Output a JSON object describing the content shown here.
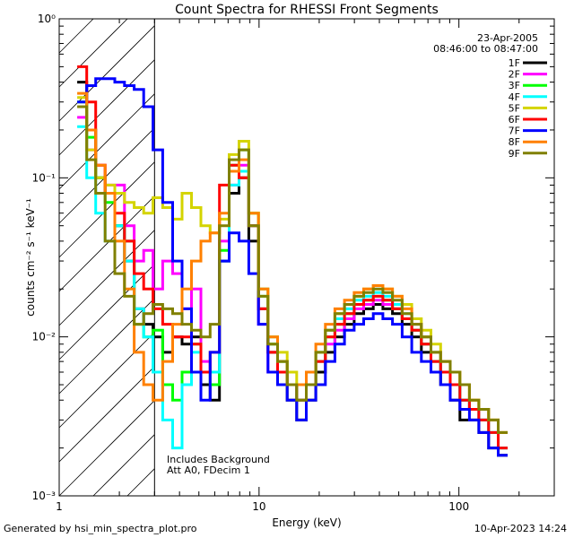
{
  "chart_data": {
    "type": "line",
    "title": "Count Spectra for RHESSI Front Segments",
    "xlabel": "Energy (keV)",
    "ylabel": "counts cm⁻² s⁻¹ keV⁻¹",
    "xscale": "log",
    "yscale": "log",
    "xlim": [
      1,
      300
    ],
    "ylim": [
      0.001,
      1
    ],
    "x_ticks": [
      {
        "value": 1,
        "label": "1"
      },
      {
        "value": 10,
        "label": "10"
      },
      {
        "value": 100,
        "label": "100"
      }
    ],
    "y_ticks": [
      {
        "value": 0.001,
        "label": "10⁻³"
      },
      {
        "value": 0.01,
        "label": "10⁻²"
      },
      {
        "value": 0.1,
        "label": "10⁻¹"
      },
      {
        "value": 1,
        "label": "10⁰"
      }
    ],
    "legend_position": "top-right",
    "legend_header": [
      "23-Apr-2005",
      "08:46:00 to 08:47:00"
    ],
    "annotations": [
      "Includes Background",
      "Att A0, FDecim 1"
    ],
    "hatched_region": [
      1,
      3
    ],
    "series": [
      {
        "name": "1F",
        "color": "#000000",
        "values": [
          0.4,
          0.2,
          0.1,
          0.08,
          0.05,
          0.03,
          0.015,
          0.012,
          0.01,
          0.008,
          0.01,
          0.009,
          0.01,
          0.005,
          0.004,
          0.03,
          0.08,
          0.1,
          0.04,
          0.015,
          0.008,
          0.006,
          0.004,
          0.003,
          0.004,
          0.006,
          0.008,
          0.01,
          0.012,
          0.014,
          0.015,
          0.016,
          0.015,
          0.014,
          0.012,
          0.01,
          0.008,
          0.006,
          0.005,
          0.004,
          0.003,
          0.003,
          0.0025,
          0.002,
          0.0018
        ]
      },
      {
        "name": "2F",
        "color": "#ff00ff",
        "values": [
          0.24,
          0.15,
          0.12,
          0.09,
          0.09,
          0.05,
          0.03,
          0.035,
          0.02,
          0.03,
          0.025,
          0.015,
          0.02,
          0.007,
          0.006,
          0.04,
          0.09,
          0.12,
          0.05,
          0.012,
          0.006,
          0.005,
          0.005,
          0.004,
          0.005,
          0.007,
          0.009,
          0.011,
          0.013,
          0.015,
          0.016,
          0.017,
          0.016,
          0.015,
          0.013,
          0.011,
          0.009,
          0.007,
          0.006,
          0.005,
          0.004,
          0.0035,
          0.003,
          0.0025,
          0.002
        ]
      },
      {
        "name": "3F",
        "color": "#00ff00",
        "values": [
          0.3,
          0.18,
          0.1,
          0.07,
          0.05,
          0.04,
          0.012,
          0.01,
          0.011,
          0.005,
          0.004,
          0.006,
          0.009,
          0.006,
          0.005,
          0.035,
          0.12,
          0.15,
          0.06,
          0.018,
          0.009,
          0.007,
          0.005,
          0.004,
          0.005,
          0.007,
          0.01,
          0.012,
          0.014,
          0.016,
          0.017,
          0.018,
          0.017,
          0.015,
          0.013,
          0.011,
          0.009,
          0.007,
          0.006,
          0.005,
          0.004,
          0.0035,
          0.003,
          0.0025,
          0.002
        ]
      },
      {
        "name": "4F",
        "color": "#00ffff",
        "values": [
          0.21,
          0.1,
          0.06,
          0.04,
          0.05,
          0.03,
          0.015,
          0.01,
          0.006,
          0.003,
          0.002,
          0.005,
          0.008,
          0.006,
          0.006,
          0.03,
          0.09,
          0.11,
          0.05,
          0.02,
          0.01,
          0.007,
          0.005,
          0.004,
          0.005,
          0.008,
          0.011,
          0.013,
          0.015,
          0.017,
          0.018,
          0.019,
          0.018,
          0.016,
          0.014,
          0.012,
          0.01,
          0.008,
          0.006,
          0.005,
          0.004,
          0.0035,
          0.003,
          0.0025,
          0.002
        ]
      },
      {
        "name": "5F",
        "color": "#d4d400",
        "values": [
          0.32,
          0.15,
          0.1,
          0.09,
          0.08,
          0.07,
          0.065,
          0.06,
          0.075,
          0.065,
          0.055,
          0.08,
          0.065,
          0.05,
          0.045,
          0.055,
          0.14,
          0.17,
          0.06,
          0.02,
          0.01,
          0.008,
          0.006,
          0.005,
          0.006,
          0.008,
          0.011,
          0.014,
          0.016,
          0.018,
          0.02,
          0.021,
          0.02,
          0.018,
          0.016,
          0.013,
          0.011,
          0.009,
          0.007,
          0.006,
          0.005,
          0.004,
          0.0035,
          0.003,
          0.0025
        ]
      },
      {
        "name": "6F",
        "color": "#ff0000",
        "values": [
          0.5,
          0.3,
          0.12,
          0.08,
          0.06,
          0.04,
          0.025,
          0.02,
          0.015,
          0.012,
          0.01,
          0.01,
          0.009,
          0.006,
          0.008,
          0.09,
          0.12,
          0.1,
          0.05,
          0.015,
          0.008,
          0.006,
          0.005,
          0.004,
          0.005,
          0.007,
          0.01,
          0.012,
          0.014,
          0.016,
          0.017,
          0.018,
          0.017,
          0.015,
          0.013,
          0.011,
          0.009,
          0.007,
          0.006,
          0.005,
          0.004,
          0.0035,
          0.003,
          0.0025,
          0.002
        ]
      },
      {
        "name": "7F",
        "color": "#0000ff",
        "values": [
          0.3,
          0.38,
          0.42,
          0.42,
          0.4,
          0.38,
          0.36,
          0.28,
          0.15,
          0.07,
          0.03,
          0.015,
          0.006,
          0.004,
          0.008,
          0.03,
          0.045,
          0.04,
          0.025,
          0.012,
          0.006,
          0.005,
          0.004,
          0.003,
          0.004,
          0.005,
          0.007,
          0.009,
          0.011,
          0.012,
          0.013,
          0.014,
          0.013,
          0.012,
          0.01,
          0.008,
          0.007,
          0.006,
          0.005,
          0.004,
          0.0035,
          0.003,
          0.0025,
          0.002,
          0.0018
        ]
      },
      {
        "name": "8F",
        "color": "#ff8000",
        "values": [
          0.34,
          0.2,
          0.12,
          0.08,
          0.04,
          0.02,
          0.008,
          0.005,
          0.004,
          0.007,
          0.012,
          0.02,
          0.03,
          0.04,
          0.045,
          0.06,
          0.11,
          0.13,
          0.06,
          0.02,
          0.01,
          0.007,
          0.005,
          0.005,
          0.006,
          0.009,
          0.012,
          0.015,
          0.017,
          0.019,
          0.02,
          0.021,
          0.02,
          0.018,
          0.015,
          0.012,
          0.01,
          0.008,
          0.007,
          0.006,
          0.005,
          0.004,
          0.0035,
          0.003,
          0.0025
        ]
      },
      {
        "name": "9F",
        "color": "#808000",
        "values": [
          0.28,
          0.13,
          0.08,
          0.04,
          0.025,
          0.018,
          0.012,
          0.014,
          0.016,
          0.015,
          0.014,
          0.012,
          0.011,
          0.01,
          0.012,
          0.05,
          0.13,
          0.15,
          0.05,
          0.018,
          0.009,
          0.007,
          0.005,
          0.004,
          0.005,
          0.008,
          0.011,
          0.014,
          0.016,
          0.018,
          0.019,
          0.02,
          0.019,
          0.017,
          0.014,
          0.012,
          0.01,
          0.008,
          0.007,
          0.006,
          0.005,
          0.004,
          0.0035,
          0.003,
          0.0025
        ]
      }
    ],
    "x": [
      1.3,
      1.45,
      1.6,
      1.8,
      2.0,
      2.25,
      2.5,
      2.8,
      3.1,
      3.5,
      3.9,
      4.35,
      4.85,
      5.4,
      6.0,
      6.7,
      7.5,
      8.4,
      9.4,
      10.5,
      11.7,
      13.1,
      14.6,
      16.3,
      18.2,
      20.3,
      22.7,
      25.3,
      28.3,
      31.6,
      35.3,
      39.4,
      44.0,
      49.2,
      55.0,
      61.4,
      68.6,
      76.6,
      85.6,
      95.6,
      107,
      119,
      133,
      149,
      166
    ]
  },
  "footer": {
    "left": "Generated by hsi_min_spectra_plot.pro",
    "right": "10-Apr-2023 14:24"
  }
}
